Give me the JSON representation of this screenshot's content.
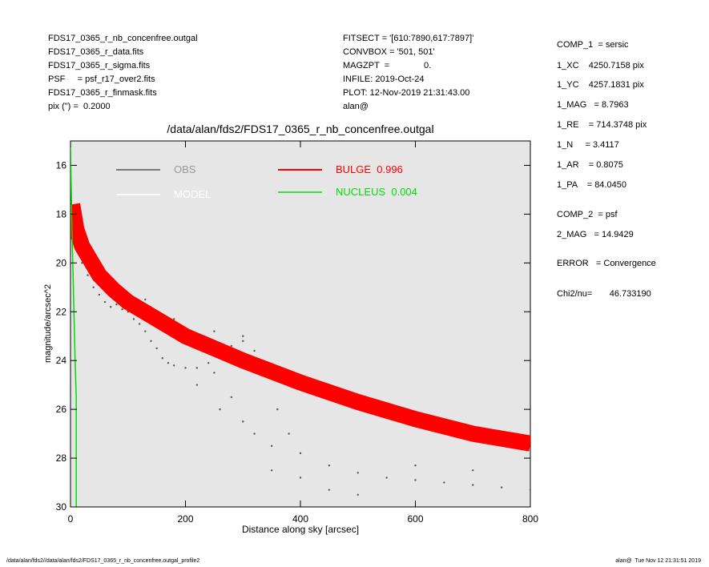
{
  "header": {
    "left": [
      "FDS17_0365_r_nb_concenfree.outgal",
      "FDS17_0365_r_data.fits",
      "FDS17_0365_r_sigma.fits",
      "PSF     = psf_r17_over2.fits",
      "FDS17_0365_r_finmask.fits",
      "pix (\") =  0.2000"
    ],
    "center": [
      "FITSECT = '[610:7890,617:7897]'",
      "CONVBOX = '501, 501'",
      "MAGZPT  =              0.",
      "INFILE: 2019-Oct-24",
      "PLOT: 12-Nov-2019 21:31:43.00",
      "alan@"
    ],
    "right": [
      "COMP_1  = sersic",
      "1_XC    4250.7158 pix",
      "1_YC    4257.1831 pix",
      "1_MAG   = 8.7963",
      "1_RE    = 714.3748 pix",
      "1_N     = 3.4117",
      "1_AR    = 0.8075",
      "1_PA    = 84.0450",
      "COMP_2  = psf",
      "2_MAG   = 14.9429",
      "ERROR   = Convergence",
      "Chi2/nu=       46.733190"
    ]
  },
  "footer": {
    "left": "/data/alan/fds2//data/alan/fds2/FDS17_0365_r_nb_concenfree.outgal_profile2",
    "right": "alan@  Tue Nov 12 21:31:51 2019"
  },
  "chart_data": {
    "type": "scatter",
    "title": "/data/alan/fds2/FDS17_0365_r_nb_concenfree.outgal",
    "x_label": "Distance along sky [arcsec]",
    "y_label": "magnitude/arcsec^2",
    "xlim": [
      0,
      800
    ],
    "xticks": [
      0,
      200,
      400,
      600,
      800
    ],
    "ylim": [
      30,
      15
    ],
    "yticks": [
      16,
      18,
      20,
      22,
      24,
      26,
      28,
      30
    ],
    "grid": false,
    "series": [
      {
        "name": "OBS",
        "type": "scatter",
        "color": "#555555",
        "x": [
          1,
          3,
          5,
          10,
          15,
          20,
          30,
          40,
          50,
          60,
          70,
          80,
          90,
          100,
          110,
          120,
          130,
          140,
          150,
          160,
          170,
          180,
          200,
          220,
          240,
          260,
          280,
          300,
          320,
          340,
          360,
          380,
          400,
          450,
          500,
          550,
          600,
          650,
          700,
          750,
          800,
          150,
          200,
          250,
          280,
          300,
          320,
          350,
          250,
          300,
          220,
          260,
          400,
          500,
          600,
          700,
          130,
          180,
          350,
          450
        ],
        "values": [
          17.5,
          18,
          18.5,
          19,
          19.5,
          20,
          20.5,
          21,
          21.3,
          21.6,
          21.8,
          21.7,
          21.9,
          22,
          22.3,
          22.5,
          22.8,
          23.2,
          23.5,
          23.9,
          24.1,
          24.2,
          24.3,
          24.3,
          24.1,
          23.8,
          23.4,
          23.2,
          23.6,
          24.5,
          26,
          27,
          27.8,
          28.3,
          28.6,
          28.8,
          28.9,
          29,
          29.1,
          29.2,
          29.3,
          22.2,
          23,
          24.5,
          25.5,
          26.5,
          27,
          27.5,
          22.8,
          23,
          25,
          26,
          28.8,
          29.5,
          28.3,
          28.5,
          21.5,
          22.3,
          28.5,
          29.3
        ]
      },
      {
        "name": "MODEL",
        "type": "line",
        "color": "#ffffff",
        "x": [],
        "values": []
      },
      {
        "name": "BULGE  0.996",
        "type": "band",
        "color": "#ff0000",
        "x": [
          3,
          10,
          20,
          35,
          50,
          75,
          100,
          150,
          200,
          250,
          300,
          400,
          500,
          600,
          700,
          800
        ],
        "values": [
          17.6,
          18.6,
          19.3,
          19.9,
          20.5,
          21.1,
          21.6,
          22.3,
          23,
          23.5,
          24,
          24.9,
          25.7,
          26.4,
          27,
          27.4
        ]
      },
      {
        "name": "NUCLEUS  0.004",
        "type": "line",
        "color": "#00dd00",
        "x": [
          0,
          2,
          5,
          8,
          10,
          10
        ],
        "values": [
          15.2,
          18,
          21,
          24,
          25.5,
          30
        ]
      }
    ]
  }
}
